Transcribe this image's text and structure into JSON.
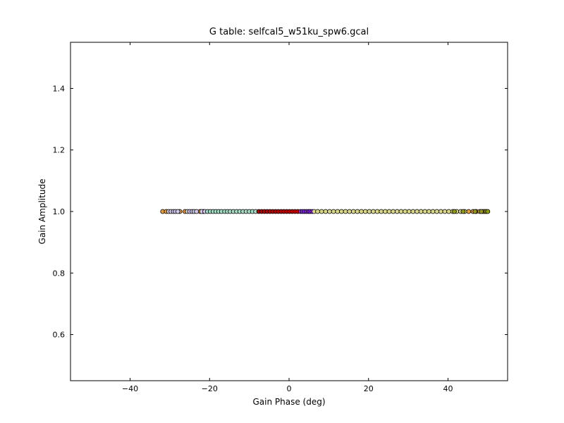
{
  "chart_data": {
    "type": "scatter",
    "title": "G table: selfcal5_w51ku_spw6.gcal",
    "xlabel": "Gain Phase (deg)",
    "ylabel": "Gain Amplitude",
    "xlim": [
      -55,
      55
    ],
    "ylim": [
      0.45,
      1.55
    ],
    "xticks": [
      -40,
      -20,
      0,
      20,
      40
    ],
    "xtick_labels": [
      "−40",
      "−20",
      "0",
      "20",
      "40"
    ],
    "yticks": [
      0.6,
      0.8,
      1.0,
      1.2,
      1.4
    ],
    "ytick_labels": [
      "0.6",
      "0.8",
      "1.0",
      "1.2",
      "1.4"
    ],
    "grid": false,
    "legend": "none",
    "marker_edge_color": "#000000",
    "series": [
      {
        "color": "#e69f3c",
        "x": [
          -31.8,
          -30.9,
          -27.5,
          -26.2,
          -22.4,
          -21.6,
          45.2,
          46.3,
          47.1,
          48.0,
          48.8,
          49.2
        ]
      },
      {
        "color": "#cfc8e8",
        "x": [
          -30.3,
          -29.7,
          -29.1,
          -28.6,
          -28.0,
          -25.6,
          -25.0,
          -24.4,
          -23.9,
          -23.3,
          -22.0,
          -21.2
        ]
      },
      {
        "color": "#a8dcc5",
        "x": [
          -20.5,
          -19.8,
          -19.1,
          -18.4,
          -17.7,
          -17.0,
          -16.2,
          -15.5,
          -14.8,
          -14.0,
          -13.2,
          -12.4,
          -11.6,
          -10.8,
          -10.0,
          -9.2,
          -8.4
        ]
      },
      {
        "color": "#c00000",
        "x": [
          -7.6,
          -6.9,
          -6.2,
          -5.5,
          -4.8,
          -4.1,
          -3.4,
          -2.7,
          -2.0,
          -1.3,
          -0.6,
          0.1,
          0.8,
          1.5,
          2.2
        ]
      },
      {
        "color": "#8a2be2",
        "x": [
          2.9,
          3.4,
          3.9,
          4.4,
          4.9,
          5.3,
          5.8
        ]
      },
      {
        "color": "#d9d78a",
        "x": [
          6.3,
          7.2,
          8.2,
          9.2,
          10.2,
          11.2,
          12.2,
          13.2,
          14.2,
          15.2,
          16.2,
          17.2,
          18.2,
          19.2,
          20.2,
          21.2,
          22.2,
          23.2,
          24.2,
          25.2,
          26.2,
          27.2,
          28.2,
          29.2,
          30.2,
          31.2,
          32.2,
          33.2,
          34.2,
          35.2,
          36.2,
          37.2,
          38.2,
          39.2,
          40.2,
          41.2,
          42.2,
          43.2,
          44.2
        ]
      },
      {
        "color": "#8f9a1f",
        "x": [
          41.6,
          43.8,
          46.8,
          48.4,
          49.6,
          50.0
        ]
      }
    ]
  }
}
